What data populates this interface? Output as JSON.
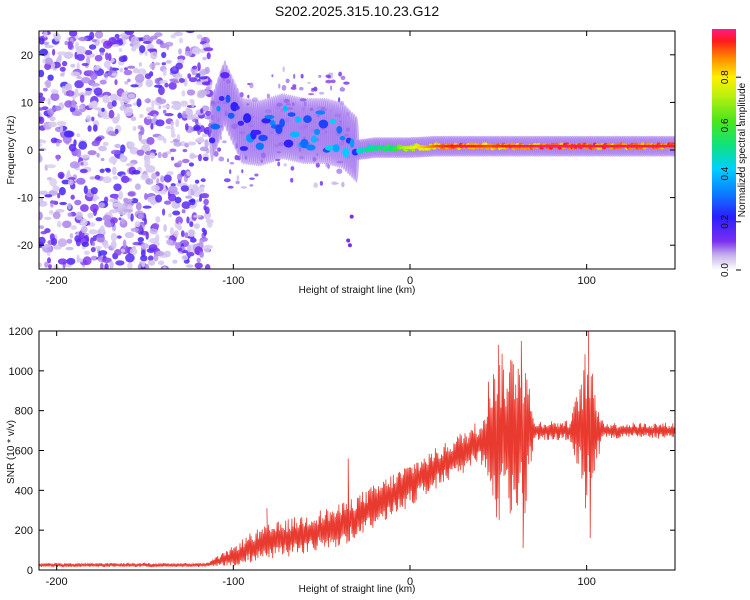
{
  "title": "S202.2025.315.10.23.G12",
  "colors": {
    "snr_line": "#e83a2f",
    "axis": "#000000",
    "background": "#ffffff"
  },
  "chart_data": [
    {
      "type": "heatmap",
      "name": "spectrogram",
      "xlabel": "Height of straight line (km)",
      "ylabel": "Frequency (Hz)",
      "xlim": [
        -210,
        150
      ],
      "ylim": [
        -25,
        25
      ],
      "xticks": [
        -200,
        -100,
        0,
        100
      ],
      "xtick_labels": [
        "-200",
        "-100",
        "0",
        "100"
      ],
      "yticks": [
        -20,
        -10,
        0,
        10,
        20
      ],
      "ytick_labels": [
        "-20",
        "-10",
        "0",
        "10",
        "20"
      ],
      "noise_region_x": [
        -210,
        -113
      ],
      "signal_band": [
        {
          "x": -112,
          "freq": 4.5,
          "amp": 0.35
        },
        {
          "x": -105,
          "freq": 12,
          "amp": 0.25
        },
        {
          "x": -95,
          "freq": 4,
          "amp": 0.3
        },
        {
          "x": -85,
          "freq": 3.5,
          "amp": 0.32
        },
        {
          "x": -72,
          "freq": 5,
          "amp": 0.38
        },
        {
          "x": -60,
          "freq": 4,
          "amp": 0.4
        },
        {
          "x": -48,
          "freq": 4,
          "amp": 0.4
        },
        {
          "x": -38,
          "freq": 3,
          "amp": 0.35
        },
        {
          "x": -30,
          "freq": 0,
          "amp": 0.45
        },
        {
          "x": -20,
          "freq": 0.5,
          "amp": 0.55
        },
        {
          "x": -10,
          "freq": 0.5,
          "amp": 0.6
        },
        {
          "x": 0,
          "freq": 0.5,
          "amp": 0.75
        },
        {
          "x": 15,
          "freq": 0.8,
          "amp": 0.9
        },
        {
          "x": 30,
          "freq": 0.8,
          "amp": 0.95
        },
        {
          "x": 45,
          "freq": 0.8,
          "amp": 0.9
        },
        {
          "x": 60,
          "freq": 0.8,
          "amp": 0.95
        },
        {
          "x": 80,
          "freq": 0.8,
          "amp": 0.97
        },
        {
          "x": 100,
          "freq": 0.8,
          "amp": 0.95
        },
        {
          "x": 120,
          "freq": 0.8,
          "amp": 0.95
        },
        {
          "x": 150,
          "freq": 0.8,
          "amp": 0.95
        }
      ],
      "colorbar": {
        "label": "Normalized spectral amplitude",
        "range": [
          0,
          1
        ],
        "ticks": [
          0.0,
          0.2,
          0.4,
          0.6,
          0.8
        ],
        "tick_labels": [
          "0.0",
          "0.2",
          "0.4",
          "0.6",
          "0.8"
        ]
      }
    },
    {
      "type": "line",
      "name": "snr",
      "xlabel": "Height of straight line (km)",
      "ylabel": "SNR (10 * v/v)",
      "xlim": [
        -210,
        150
      ],
      "ylim": [
        0,
        1200
      ],
      "xticks": [
        -200,
        -100,
        0,
        100
      ],
      "xtick_labels": [
        "-200",
        "-100",
        "0",
        "100"
      ],
      "yticks": [
        0,
        200,
        400,
        600,
        800,
        1000,
        1200
      ],
      "ytick_labels": [
        "0",
        "200",
        "400",
        "600",
        "800",
        "1000",
        "1200"
      ],
      "envelope": {
        "x": [
          -210,
          -115,
          -100,
          -90,
          -80,
          -60,
          -40,
          -20,
          0,
          20,
          40,
          48,
          55,
          60,
          65,
          70,
          90,
          95,
          100,
          105,
          110,
          150
        ],
        "mean": [
          25,
          25,
          70,
          110,
          140,
          180,
          220,
          320,
          430,
          540,
          640,
          680,
          680,
          690,
          680,
          700,
          700,
          700,
          700,
          700,
          700,
          700
        ],
        "spread": [
          10,
          10,
          50,
          80,
          90,
          100,
          110,
          110,
          110,
          100,
          120,
          450,
          380,
          480,
          450,
          50,
          50,
          200,
          450,
          200,
          40,
          40
        ]
      },
      "peaks": [
        {
          "x": 50,
          "y": 1130
        },
        {
          "x": 50.5,
          "y": 250
        },
        {
          "x": 63,
          "y": 1150
        },
        {
          "x": 64,
          "y": 110
        },
        {
          "x": 101,
          "y": 1230
        },
        {
          "x": 102,
          "y": 160
        },
        {
          "x": -81,
          "y": 310
        },
        {
          "x": -35,
          "y": 560
        }
      ]
    }
  ]
}
